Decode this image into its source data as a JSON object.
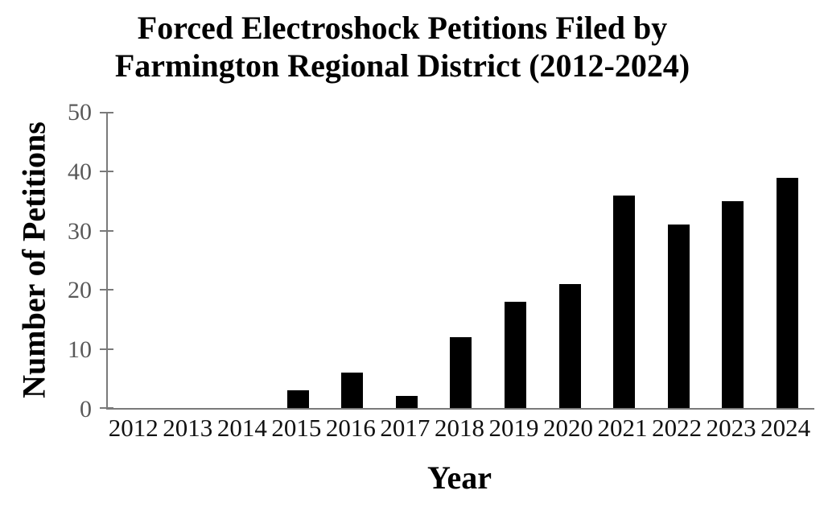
{
  "header": {
    "title_line1": "Forced Electroshock Petitions Filed by",
    "title_line2": "Farmington Regional District (2012-2024)"
  },
  "chart_data": {
    "type": "bar",
    "title": "Forced Electroshock Petitions Filed by Farmington Regional District (2012-2024)",
    "categories": [
      "2012",
      "2013",
      "2014",
      "2015",
      "2016",
      "2017",
      "2018",
      "2019",
      "2020",
      "2021",
      "2022",
      "2023",
      "2024"
    ],
    "values": [
      0,
      0,
      0,
      3,
      6,
      2,
      12,
      18,
      21,
      36,
      31,
      35,
      39
    ],
    "xlabel": "Year",
    "ylabel": "Number of Petitions",
    "ylim": [
      0,
      50
    ],
    "yticks": [
      0,
      10,
      20,
      30,
      40,
      50
    ],
    "grid": false,
    "legend": false,
    "bar_color": "#000000",
    "axis_color": "#7a7a7a",
    "ytick_label_color": "#595959",
    "xtick_label_color": "#111111"
  }
}
